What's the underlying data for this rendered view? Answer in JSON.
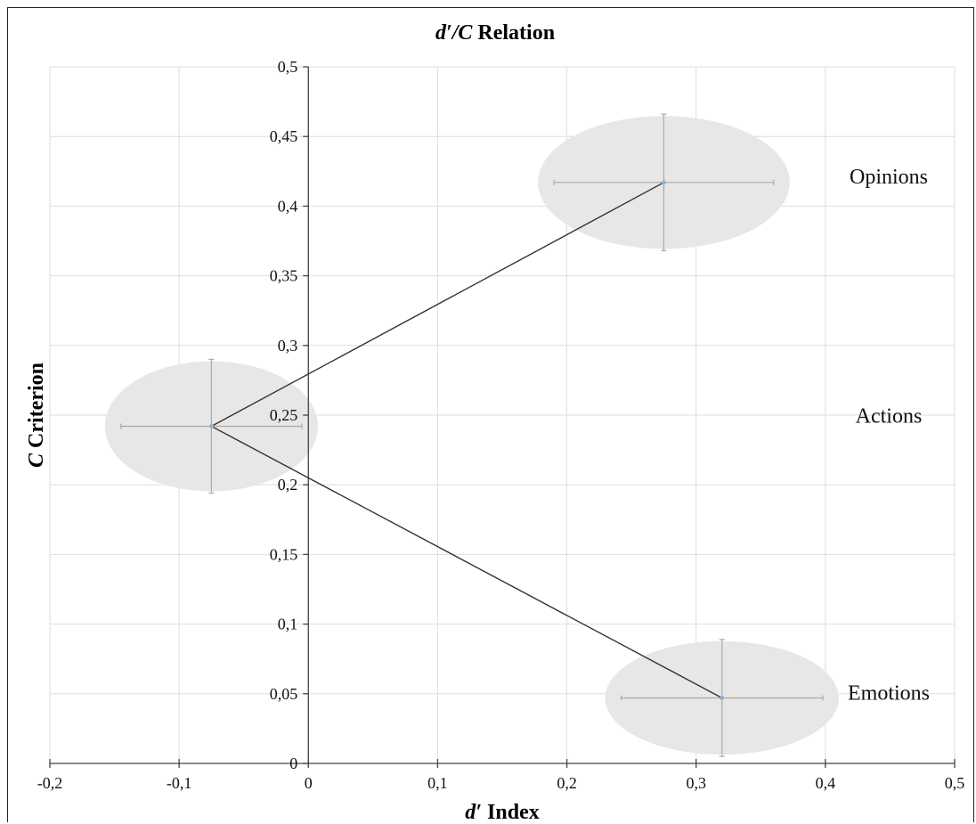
{
  "chart_data": {
    "type": "scatter",
    "title_italic": "d′/C",
    "title_rest": " Relation",
    "xlabel_italic": "d′",
    "xlabel_rest": " Index",
    "ylabel_italic": "C",
    "ylabel_rest": " Criterion",
    "xlim": [
      -0.2,
      0.5
    ],
    "ylim": [
      0,
      0.5
    ],
    "x_ticks": [
      -0.2,
      -0.1,
      0,
      0.1,
      0.2,
      0.3,
      0.4,
      0.5
    ],
    "x_tick_labels": [
      "-0,2",
      "-0,1",
      "0",
      "0,1",
      "0,2",
      "0,3",
      "0,4",
      "0,5"
    ],
    "y_ticks": [
      0,
      0.05,
      0.1,
      0.15,
      0.2,
      0.25,
      0.3,
      0.35,
      0.4,
      0.45,
      0.5
    ],
    "y_tick_labels": [
      "0",
      "0,05",
      "0,1",
      "0,15",
      "0,2",
      "0,25",
      "0,3",
      "0,35",
      "0,4",
      "0,45",
      "0,5"
    ],
    "grid": true,
    "points": [
      {
        "label": "Opinions",
        "x": 0.275,
        "y": 0.417,
        "x_err": 0.085,
        "y_err": 0.049
      },
      {
        "label": "Actions",
        "x": -0.075,
        "y": 0.242,
        "x_err": 0.07,
        "y_err": 0.048
      },
      {
        "label": "Emotions",
        "x": 0.32,
        "y": 0.047,
        "x_err": 0.078,
        "y_err": 0.042
      }
    ],
    "lines": [
      [
        "Actions",
        "Opinions"
      ],
      [
        "Actions",
        "Emotions"
      ]
    ],
    "colors": {
      "ellipse": "#e8e7e6",
      "line": "#333333",
      "error_bar": "#a9a9a9",
      "marker": "#8ab4d8",
      "grid": "#dedede",
      "axis": "#444444"
    }
  }
}
